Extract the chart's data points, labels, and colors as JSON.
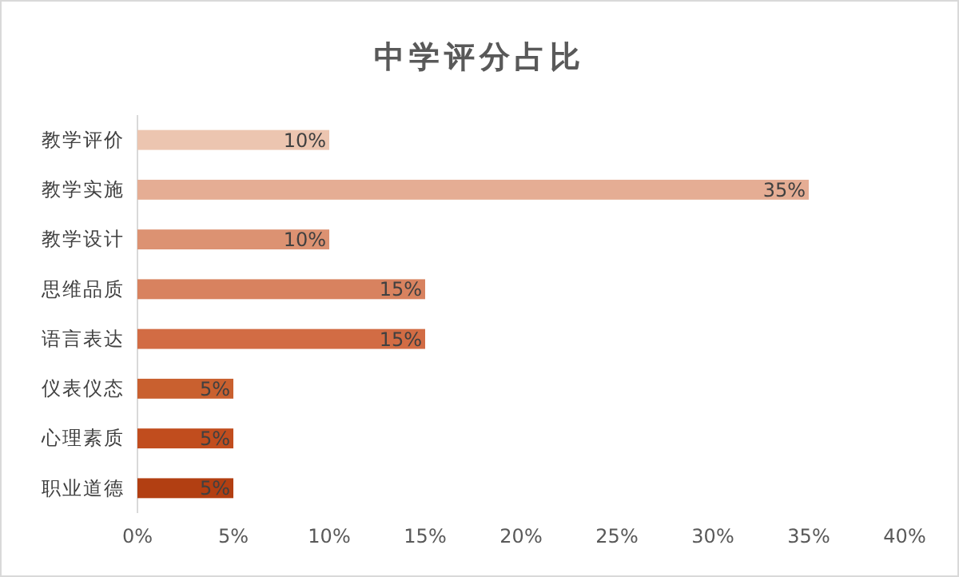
{
  "chart_data": {
    "type": "bar",
    "orientation": "horizontal",
    "title": "中学评分占比",
    "categories": [
      "教学评价",
      "教学实施",
      "教学设计",
      "思维品质",
      "语言表达",
      "仪表仪态",
      "心理素质",
      "职业道德"
    ],
    "values": [
      10,
      35,
      10,
      15,
      15,
      5,
      5,
      5
    ],
    "colors": [
      "#ecc5b0",
      "#e5ad94",
      "#dc9272",
      "#d8825f",
      "#d26c44",
      "#c9602f",
      "#c14d1e",
      "#b23f12"
    ],
    "value_labels": [
      "10%",
      "35%",
      "10%",
      "15%",
      "15%",
      "5%",
      "5%",
      "5%"
    ],
    "xlim": [
      0,
      40
    ],
    "xticks": [
      {
        "value": 0,
        "label": "0%"
      },
      {
        "value": 5,
        "label": "5%"
      },
      {
        "value": 10,
        "label": "10%"
      },
      {
        "value": 15,
        "label": "15%"
      },
      {
        "value": 20,
        "label": "20%"
      },
      {
        "value": 25,
        "label": "25%"
      },
      {
        "value": 30,
        "label": "30%"
      },
      {
        "value": 35,
        "label": "35%"
      },
      {
        "value": 40,
        "label": "40%"
      }
    ],
    "data_labels": true
  }
}
